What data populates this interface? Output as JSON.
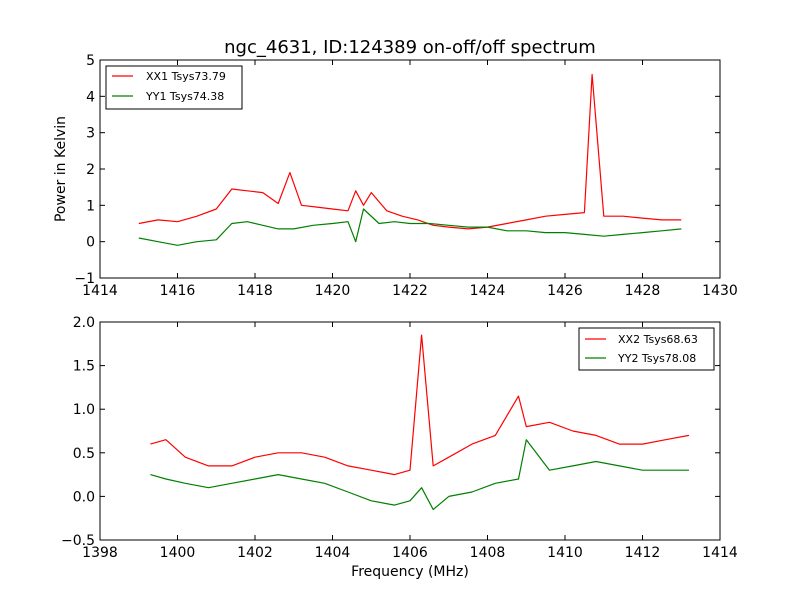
{
  "chart_data": [
    {
      "type": "line",
      "title": "ngc_4631, ID:124389 on-off/off spectrum",
      "xlabel": "",
      "ylabel": "Power in Kelvin",
      "xlim": [
        1414,
        1430
      ],
      "ylim": [
        -1,
        5
      ],
      "xticks": [
        1414,
        1416,
        1418,
        1420,
        1422,
        1424,
        1426,
        1428,
        1430
      ],
      "yticks": [
        -1,
        0,
        1,
        2,
        3,
        4,
        5
      ],
      "grid": false,
      "legend_position": "top-left",
      "series": [
        {
          "name": "XX1 Tsys73.79",
          "color": "#ff0000",
          "x": [
            1415.0,
            1415.5,
            1416.0,
            1416.5,
            1417.0,
            1417.4,
            1417.8,
            1418.2,
            1418.6,
            1418.9,
            1419.2,
            1419.6,
            1420.0,
            1420.4,
            1420.6,
            1420.8,
            1421.0,
            1421.4,
            1421.8,
            1422.2,
            1422.6,
            1423.0,
            1423.5,
            1424.0,
            1424.5,
            1425.0,
            1425.5,
            1426.0,
            1426.5,
            1426.7,
            1427.0,
            1427.5,
            1428.0,
            1428.5,
            1429.0
          ],
          "y": [
            0.5,
            0.6,
            0.55,
            0.7,
            0.9,
            1.45,
            1.4,
            1.35,
            1.05,
            1.9,
            1.0,
            0.95,
            0.9,
            0.85,
            1.4,
            1.0,
            1.35,
            0.85,
            0.7,
            0.6,
            0.45,
            0.4,
            0.35,
            0.4,
            0.5,
            0.6,
            0.7,
            0.75,
            0.8,
            4.6,
            0.7,
            0.7,
            0.65,
            0.6,
            0.6
          ]
        },
        {
          "name": "YY1 Tsys74.38",
          "color": "#008000",
          "x": [
            1415.0,
            1415.5,
            1416.0,
            1416.5,
            1417.0,
            1417.4,
            1417.8,
            1418.2,
            1418.6,
            1419.0,
            1419.5,
            1420.0,
            1420.4,
            1420.6,
            1420.8,
            1421.2,
            1421.6,
            1422.0,
            1422.5,
            1423.0,
            1423.5,
            1424.0,
            1424.5,
            1425.0,
            1425.5,
            1426.0,
            1426.5,
            1427.0,
            1427.5,
            1428.0,
            1428.5,
            1429.0
          ],
          "y": [
            0.1,
            0.0,
            -0.1,
            0.0,
            0.05,
            0.5,
            0.55,
            0.45,
            0.35,
            0.35,
            0.45,
            0.5,
            0.55,
            0.0,
            0.9,
            0.5,
            0.55,
            0.5,
            0.5,
            0.45,
            0.4,
            0.4,
            0.3,
            0.3,
            0.25,
            0.25,
            0.2,
            0.15,
            0.2,
            0.25,
            0.3,
            0.35
          ]
        }
      ]
    },
    {
      "type": "line",
      "title": "",
      "xlabel": "Frequency (MHz)",
      "ylabel": "",
      "xlim": [
        1398,
        1414
      ],
      "ylim": [
        -0.5,
        2.0
      ],
      "xticks": [
        1398,
        1400,
        1402,
        1404,
        1406,
        1408,
        1410,
        1412,
        1414
      ],
      "yticks": [
        -0.5,
        0.0,
        0.5,
        1.0,
        1.5,
        2.0
      ],
      "grid": false,
      "legend_position": "top-right",
      "series": [
        {
          "name": "XX2 Tsys68.63",
          "color": "#ff0000",
          "x": [
            1399.3,
            1399.7,
            1400.2,
            1400.8,
            1401.4,
            1402.0,
            1402.6,
            1403.2,
            1403.8,
            1404.4,
            1405.0,
            1405.6,
            1406.0,
            1406.3,
            1406.6,
            1407.0,
            1407.6,
            1408.2,
            1408.8,
            1409.0,
            1409.6,
            1410.2,
            1410.8,
            1411.4,
            1412.0,
            1412.6,
            1413.2
          ],
          "y": [
            0.6,
            0.65,
            0.45,
            0.35,
            0.35,
            0.45,
            0.5,
            0.5,
            0.45,
            0.35,
            0.3,
            0.25,
            0.3,
            1.85,
            0.35,
            0.45,
            0.6,
            0.7,
            1.15,
            0.8,
            0.85,
            0.75,
            0.7,
            0.6,
            0.6,
            0.65,
            0.7
          ]
        },
        {
          "name": "YY2 Tsys78.08",
          "color": "#008000",
          "x": [
            1399.3,
            1399.7,
            1400.2,
            1400.8,
            1401.4,
            1402.0,
            1402.6,
            1403.2,
            1403.8,
            1404.4,
            1405.0,
            1405.6,
            1406.0,
            1406.3,
            1406.6,
            1407.0,
            1407.6,
            1408.2,
            1408.8,
            1409.0,
            1409.6,
            1410.2,
            1410.8,
            1411.4,
            1412.0,
            1412.6,
            1413.2
          ],
          "y": [
            0.25,
            0.2,
            0.15,
            0.1,
            0.15,
            0.2,
            0.25,
            0.2,
            0.15,
            0.05,
            -0.05,
            -0.1,
            -0.05,
            0.1,
            -0.15,
            0.0,
            0.05,
            0.15,
            0.2,
            0.65,
            0.3,
            0.35,
            0.4,
            0.35,
            0.3,
            0.3,
            0.3
          ]
        }
      ]
    }
  ]
}
